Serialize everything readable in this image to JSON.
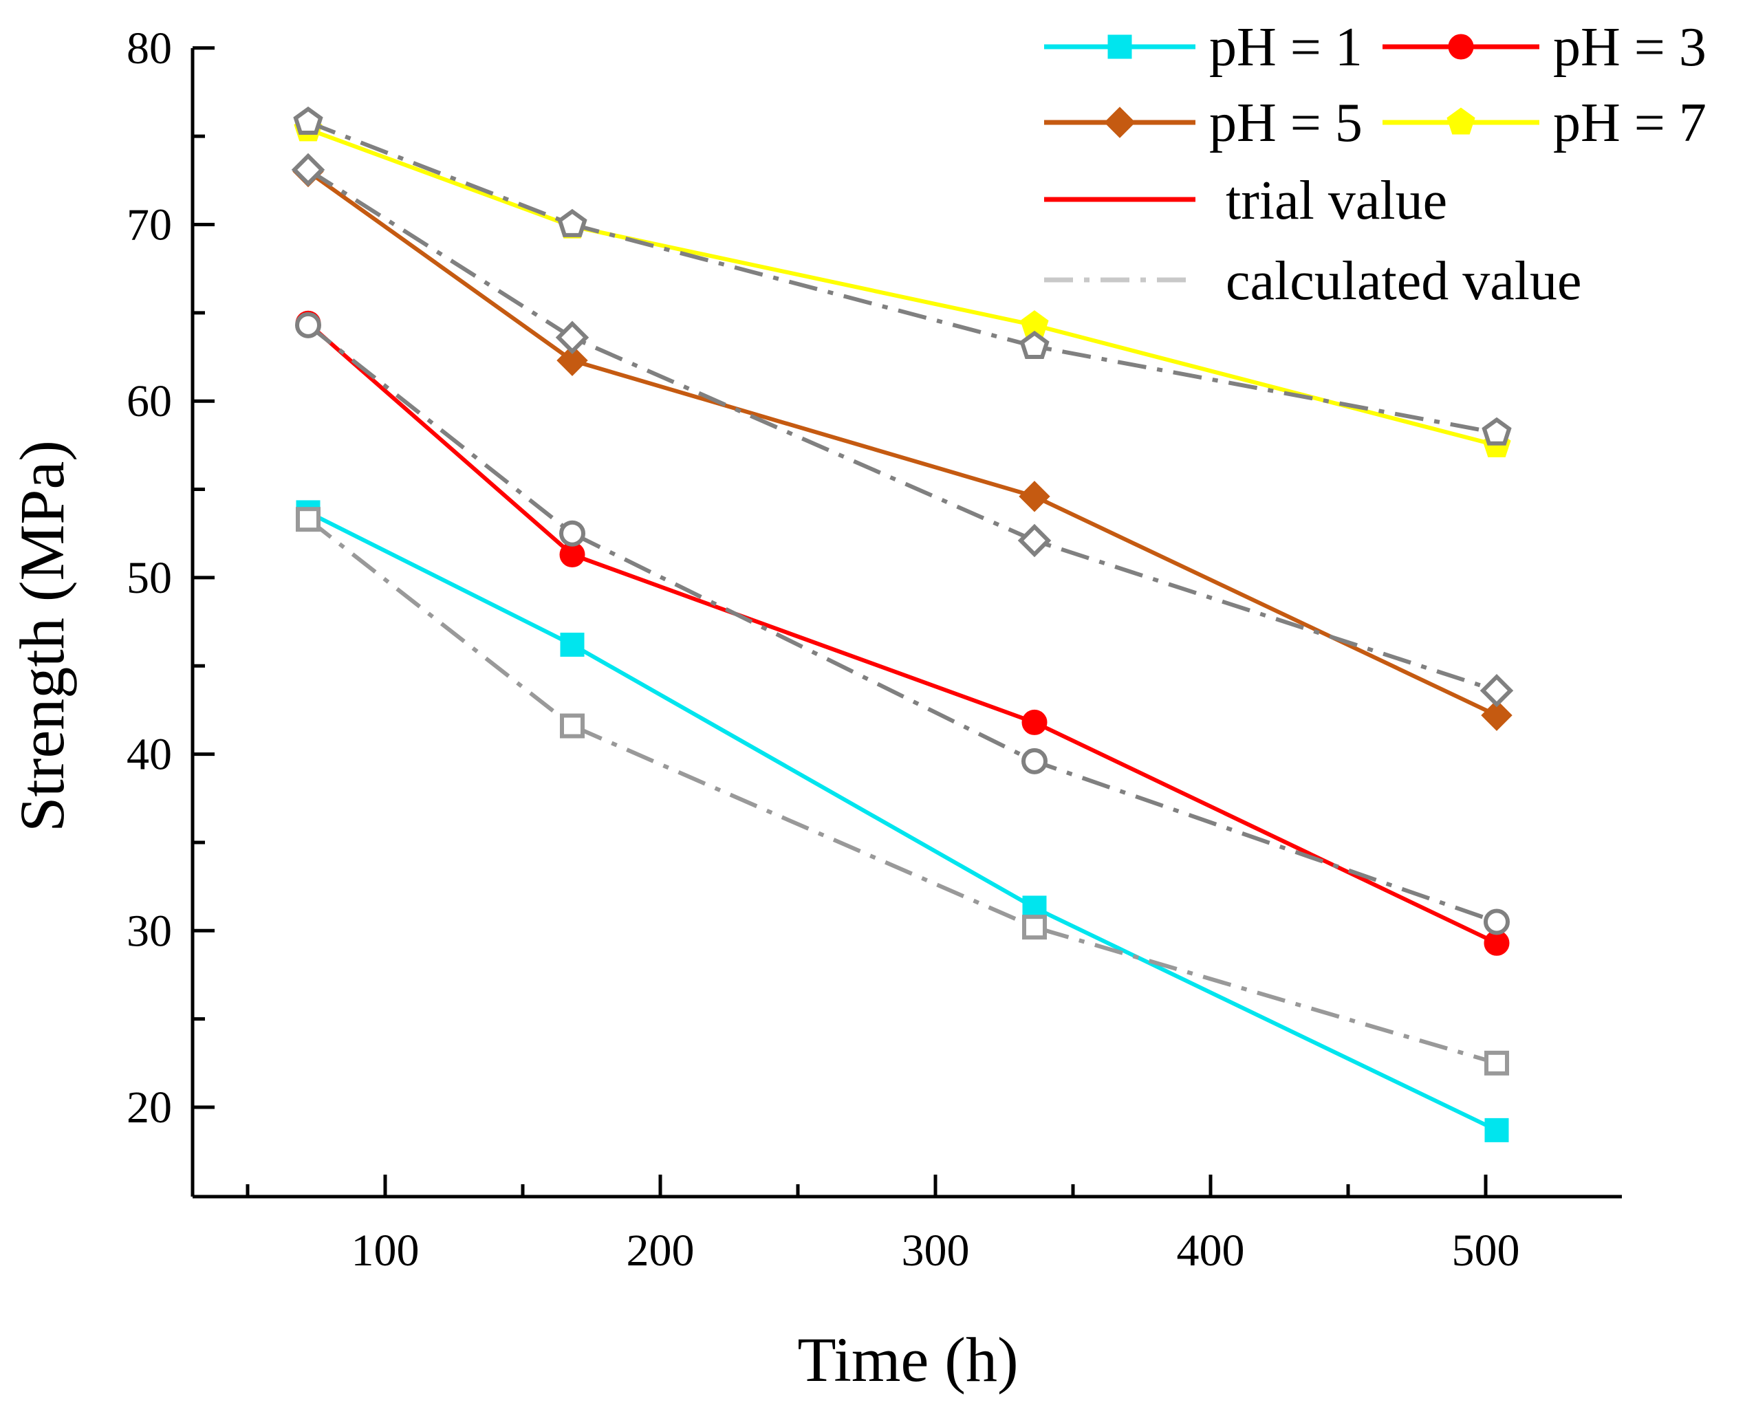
{
  "chart_data": {
    "type": "line",
    "title": "",
    "xlabel": "Time (h)",
    "ylabel": "Strength (MPa)",
    "xlim": [
      30,
      550
    ],
    "ylim": [
      15,
      80
    ],
    "xticks": [
      100,
      200,
      300,
      400,
      500
    ],
    "yticks": [
      20,
      30,
      40,
      50,
      60,
      70,
      80
    ],
    "grid": false,
    "legend_position": "top-right",
    "x": [
      72,
      168,
      336,
      504
    ],
    "series": [
      {
        "name": "pH = 1",
        "kind": "trial",
        "color": "#00E5EE",
        "marker": "square",
        "values": [
          53.7,
          46.2,
          31.3,
          18.7
        ]
      },
      {
        "name": "pH = 3",
        "kind": "trial",
        "color": "#FF0000",
        "marker": "circle",
        "values": [
          64.4,
          51.3,
          41.8,
          29.3
        ]
      },
      {
        "name": "pH = 5",
        "kind": "trial",
        "color": "#C55A11",
        "marker": "diamond",
        "values": [
          73.0,
          62.3,
          54.6,
          42.2
        ]
      },
      {
        "name": "pH = 7",
        "kind": "trial",
        "color": "#FFFF00",
        "marker": "pentagon",
        "values": [
          75.4,
          69.9,
          64.3,
          57.5
        ]
      },
      {
        "name": "pH = 1 calculated",
        "kind": "calculated",
        "color": "#999999",
        "marker": "square-open",
        "values": [
          53.3,
          41.6,
          30.2,
          22.5
        ]
      },
      {
        "name": "pH = 3 calculated",
        "kind": "calculated",
        "color": "#808080",
        "marker": "circle-open",
        "values": [
          64.3,
          52.5,
          39.6,
          30.5
        ]
      },
      {
        "name": "pH = 5 calculated",
        "kind": "calculated",
        "color": "#808080",
        "marker": "diamond-open",
        "values": [
          73.1,
          63.6,
          52.1,
          43.6
        ]
      },
      {
        "name": "pH = 7 calculated",
        "kind": "calculated",
        "color": "#808080",
        "marker": "pentagon-open",
        "values": [
          75.8,
          70.0,
          63.1,
          58.2
        ]
      }
    ],
    "legend": {
      "entries": [
        {
          "label": "pH = 1",
          "color": "#00E5EE",
          "marker": "square",
          "line": "solid"
        },
        {
          "label": "pH = 3",
          "color": "#FF0000",
          "marker": "circle",
          "line": "solid"
        },
        {
          "label": "pH = 5",
          "color": "#C55A11",
          "marker": "diamond",
          "line": "solid"
        },
        {
          "label": "pH = 7",
          "color": "#FFFF00",
          "marker": "pentagon",
          "line": "solid"
        },
        {
          "label": "trial value",
          "color": "#FF0000",
          "marker": "none",
          "line": "solid"
        },
        {
          "label": "calculated value",
          "color": "#C8C8C8",
          "marker": "none",
          "line": "dashdot"
        }
      ]
    }
  }
}
